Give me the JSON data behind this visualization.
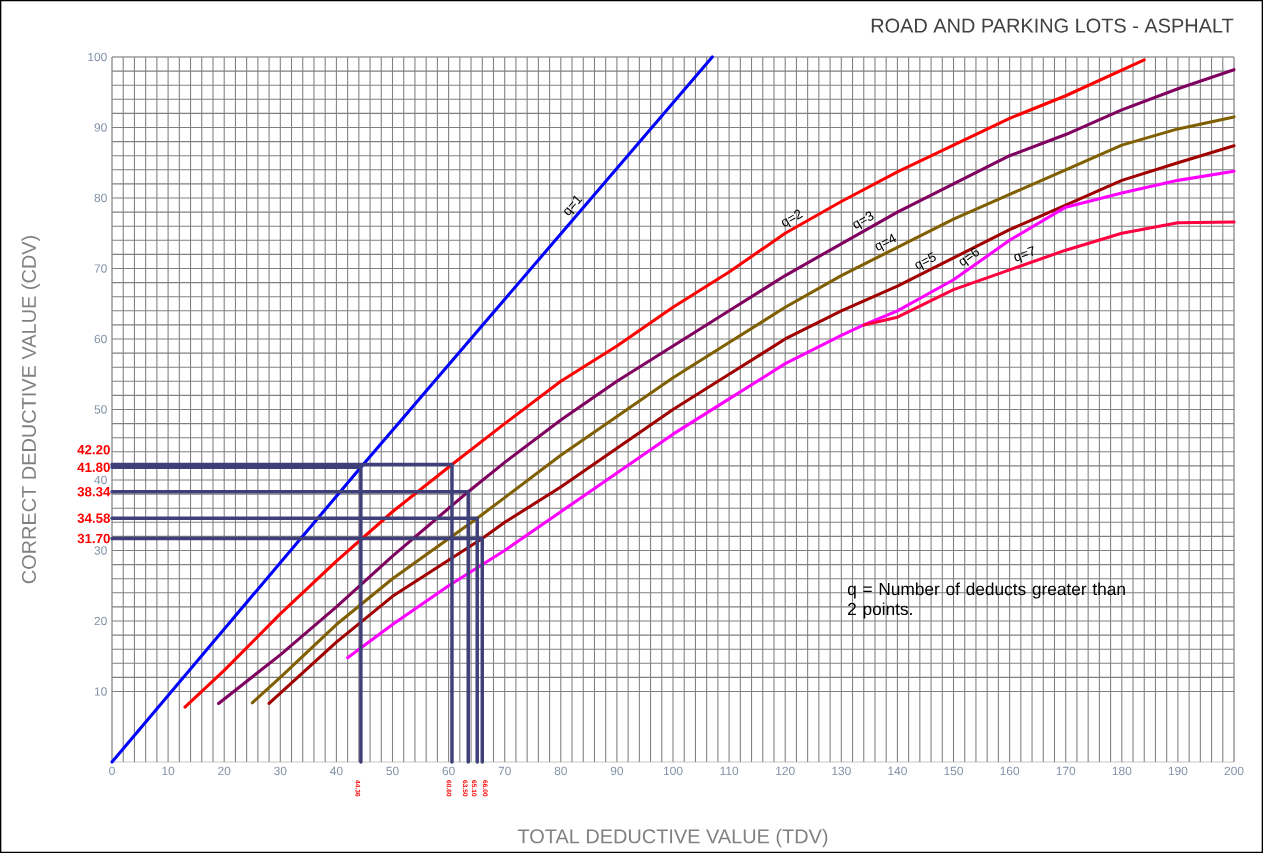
{
  "chart_data": {
    "type": "line",
    "title": "ROAD AND PARKING LOTS - ASPHALT",
    "xlabel": "TOTAL DEDUCTIVE VALUE (TDV)",
    "ylabel": "CORRECT DEDUCTIVE VALUE (CDV)",
    "xlim": [
      0,
      200
    ],
    "ylim": [
      0,
      100
    ],
    "xticks": [
      0,
      10,
      20,
      30,
      40,
      50,
      60,
      70,
      80,
      90,
      100,
      110,
      120,
      130,
      140,
      150,
      160,
      170,
      180,
      190,
      200
    ],
    "yticks": [
      10,
      20,
      30,
      40,
      50,
      60,
      70,
      80,
      90,
      100
    ],
    "grid": true,
    "series": [
      {
        "name": "q=1",
        "color": "#0000ff",
        "x": [
          0,
          44.36,
          107
        ],
        "values": [
          0,
          41.8,
          100
        ]
      },
      {
        "name": "q=2",
        "color": "#ff0000",
        "x": [
          13,
          20,
          30,
          40,
          50,
          60.6,
          70,
          80,
          90,
          100,
          110,
          120,
          130,
          140,
          150,
          160,
          170,
          184
        ],
        "values": [
          7.8,
          13,
          21,
          28.5,
          35.5,
          42.2,
          48,
          54,
          59,
          64.5,
          69.5,
          75,
          79.5,
          83.7,
          87.5,
          91.3,
          94.5,
          99.6
        ]
      },
      {
        "name": "q=3",
        "color": "#800060",
        "x": [
          19,
          30,
          40,
          50,
          63.5,
          70,
          80,
          90,
          100,
          110,
          120,
          130,
          140,
          150,
          160,
          170,
          180,
          190,
          200
        ],
        "values": [
          8.3,
          15.2,
          22,
          29.2,
          38.34,
          42.5,
          48.5,
          54,
          59,
          64,
          69,
          73.5,
          78,
          82,
          86,
          89,
          92.5,
          95.5,
          98.2
        ]
      },
      {
        "name": "q=4",
        "color": "#7f5f00",
        "x": [
          25,
          30,
          40,
          50,
          65.1,
          70,
          80,
          90,
          100,
          110,
          120,
          130,
          140,
          150,
          160,
          170,
          180,
          190,
          200
        ],
        "values": [
          8.4,
          12,
          19.5,
          26,
          34.58,
          37.5,
          43.5,
          49,
          54.5,
          59.5,
          64.5,
          69,
          73,
          77,
          80.5,
          84,
          87.5,
          89.8,
          91.5
        ]
      },
      {
        "name": "q=5",
        "color": "#a00000",
        "x": [
          28,
          40,
          50,
          66,
          70,
          80,
          90,
          100,
          110,
          120,
          130,
          140,
          150,
          160,
          170,
          180,
          190,
          200
        ],
        "values": [
          8.3,
          17,
          23.5,
          31.7,
          34,
          39,
          44.5,
          50,
          55,
          60,
          64,
          67.5,
          71.5,
          75.5,
          79,
          82.5,
          85,
          87.4
        ]
      },
      {
        "name": "q=6",
        "color": "#ff00ff",
        "x": [
          42,
          50,
          60,
          70,
          80,
          90,
          100,
          110,
          120,
          130,
          134,
          140,
          150,
          160,
          170,
          180,
          190,
          200
        ],
        "values": [
          14.8,
          19.5,
          25,
          30,
          35.5,
          41,
          46.5,
          51.5,
          56.5,
          60.5,
          62,
          64,
          68.4,
          74,
          78.7,
          80.7,
          82.5,
          83.8
        ]
      },
      {
        "name": "q=7",
        "color": "#ff0040",
        "x": [
          134,
          140,
          150,
          160,
          170,
          180,
          190,
          200
        ],
        "values": [
          62,
          63.1,
          67,
          69.8,
          72.6,
          75,
          76.5,
          76.6
        ]
      },
      {
        "color": "#3f3f7a",
        "x": [
          0,
          44.36,
          44.36
        ],
        "values": [
          41.8,
          41.8,
          0
        ]
      },
      {
        "color": "#3f3f7a",
        "x": [
          0,
          60.6,
          60.6
        ],
        "values": [
          42.2,
          42.2,
          0
        ]
      },
      {
        "color": "#3f3f7a",
        "x": [
          0,
          63.5,
          63.5
        ],
        "values": [
          38.34,
          38.34,
          0
        ]
      },
      {
        "color": "#3f3f7a",
        "x": [
          0,
          65.1,
          65.1
        ],
        "values": [
          34.58,
          34.58,
          0
        ]
      },
      {
        "color": "#3f3f7a",
        "x": [
          0,
          66,
          66
        ],
        "values": [
          31.7,
          31.7,
          0
        ]
      }
    ],
    "annotations": [
      {
        "text": "42.20",
        "x": 0,
        "y": 42.2
      },
      {
        "text": "41.80",
        "x": 0,
        "y": 41.8
      },
      {
        "text": "38.34",
        "x": 0,
        "y": 38.34
      },
      {
        "text": "34.58",
        "x": 0,
        "y": 34.58
      },
      {
        "text": "31.70",
        "x": 0,
        "y": 31.7
      },
      {
        "text": "44.36",
        "x": 44.36,
        "y": 0
      },
      {
        "text": "60.60",
        "x": 60.6,
        "y": 0
      },
      {
        "text": "63.50",
        "x": 63.5,
        "y": 0
      },
      {
        "text": "65.10",
        "x": 65.1,
        "y": 0
      },
      {
        "text": "66.00",
        "x": 66,
        "y": 0
      },
      "q = Number of deducts greater than 2 points."
    ]
  }
}
